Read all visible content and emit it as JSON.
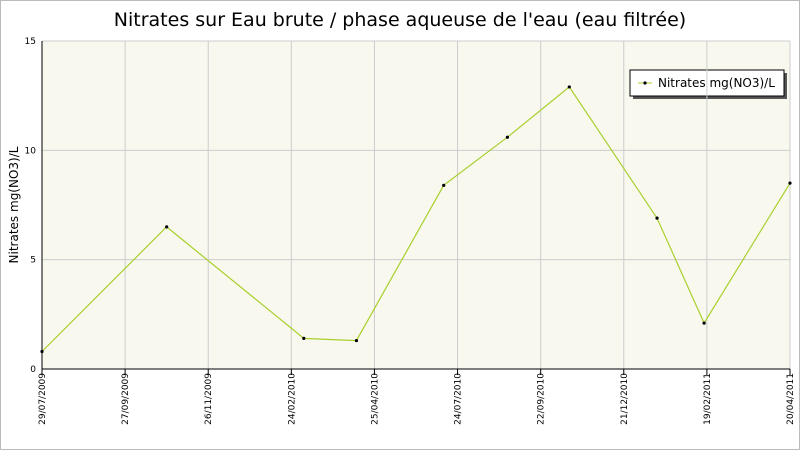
{
  "chart_data": {
    "type": "line",
    "title": "Nitrates sur Eau brute / phase aqueuse de l'eau (eau filtrée)",
    "y_label": "Nitrates mg(NO3)/L",
    "x": [
      "29/07/2009",
      "27/10/2009",
      "05/03/2010",
      "12/04/2010",
      "09/07/2010",
      "29/08/2010",
      "23/10/2010",
      "14/01/2011",
      "17/02/2011",
      "20/04/2011"
    ],
    "series": [
      {
        "name": "Nitrates mg(NO3)/L",
        "color": "#a8d02c",
        "values": [
          0.8,
          6.5,
          1.4,
          1.3,
          8.4,
          10.6,
          12.9,
          6.9,
          2.1,
          8.5
        ]
      }
    ],
    "xticks": [
      "29/07/2009",
      "27/09/2009",
      "26/11/2009",
      "24/02/2010",
      "25/04/2010",
      "24/07/2010",
      "22/09/2010",
      "21/12/2010",
      "19/02/2011",
      "20/04/2011"
    ],
    "ylim": [
      0,
      15
    ],
    "yticks": [
      0,
      5,
      10,
      15
    ],
    "grid": true,
    "legend": "upper right"
  }
}
